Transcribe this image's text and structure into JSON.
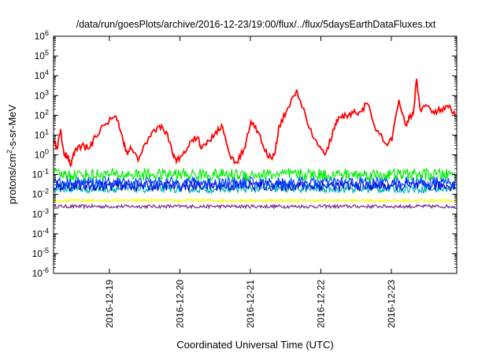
{
  "chart_data": {
    "type": "line",
    "title": "/data/run/goesPlots/archive/2016-12-23/19:00/flux/../flux/5daysEarthDataFluxes.txt",
    "xlabel": "Coordinated Universal Time (UTC)",
    "ylabel": {
      "base": "protons/cm",
      "sup": "2",
      "rest": "-s-sr-MeV"
    },
    "yscale": "log",
    "ylim": [
      1e-06,
      1000000.0
    ],
    "xlim_days": [
      "2016-12-18 T05:00",
      "2016-12-23 T19:00"
    ],
    "grid": false,
    "legend": "none",
    "y_ticks": [
      {
        "value": 1e-06,
        "base": "10",
        "exp": "-6"
      },
      {
        "value": 1e-05,
        "base": "10",
        "exp": "-5"
      },
      {
        "value": 0.0001,
        "base": "10",
        "exp": "-4"
      },
      {
        "value": 0.001,
        "base": "10",
        "exp": "-3"
      },
      {
        "value": 0.01,
        "base": "10",
        "exp": "-2"
      },
      {
        "value": 0.1,
        "base": "10",
        "exp": "-1"
      },
      {
        "value": 1,
        "base": "10",
        "exp": "0"
      },
      {
        "value": 10,
        "base": "10",
        "exp": "1"
      },
      {
        "value": 100,
        "base": "10",
        "exp": "2"
      },
      {
        "value": 1000,
        "base": "10",
        "exp": "3"
      },
      {
        "value": 10000,
        "base": "10",
        "exp": "4"
      },
      {
        "value": 100000,
        "base": "10",
        "exp": "5"
      },
      {
        "value": 1000000,
        "base": "10",
        "exp": "6"
      }
    ],
    "x_ticks": [
      {
        "label": "2016-12-19",
        "day": 0.792
      },
      {
        "label": "2016-12-20",
        "day": 1.792
      },
      {
        "label": "2016-12-21",
        "day": 2.792
      },
      {
        "label": "2016-12-22",
        "day": 3.792
      },
      {
        "label": "2016-12-23",
        "day": 4.792
      }
    ],
    "series": [
      {
        "color": "#ff0000",
        "x_days": [
          0.0,
          0.05,
          0.1,
          0.15,
          0.2,
          0.25,
          0.3,
          0.4,
          0.5,
          0.6,
          0.7,
          0.85,
          0.92,
          1.0,
          1.05,
          1.1,
          1.2,
          1.35,
          1.5,
          1.6,
          1.7,
          1.75,
          1.85,
          1.95,
          2.05,
          2.1,
          2.2,
          2.3,
          2.4,
          2.5,
          2.6,
          2.7,
          2.8,
          2.9,
          3.0,
          3.1,
          3.15,
          3.2,
          3.3,
          3.45,
          3.6,
          3.75,
          3.85,
          3.95,
          4.0,
          4.05,
          4.15,
          4.25,
          4.35,
          4.45,
          4.55,
          4.7,
          4.8,
          4.9,
          5.0,
          5.05,
          5.1,
          5.15,
          5.2,
          5.3,
          5.4,
          5.5,
          5.6,
          5.7
        ],
        "values": [
          6,
          2,
          20,
          1,
          0.8,
          0.3,
          1.5,
          3,
          2,
          8,
          30,
          80,
          50,
          3,
          1,
          2,
          0.5,
          8,
          30,
          15,
          0.8,
          0.5,
          1.5,
          5,
          8,
          2,
          5,
          15,
          25,
          1,
          0.4,
          2,
          50,
          15,
          1.5,
          0.6,
          2,
          30,
          150,
          2000,
          40,
          3,
          1,
          8,
          40,
          80,
          100,
          130,
          150,
          400,
          30,
          4,
          5,
          600,
          30,
          80,
          100,
          7000,
          200,
          300,
          120,
          200,
          250,
          100
        ]
      },
      {
        "color": "#00ee00",
        "band": [
          0.05,
          0.2
        ],
        "x_days": [
          0,
          5.7
        ]
      },
      {
        "color": "#0044ff",
        "band": [
          0.02,
          0.08
        ],
        "x_days": [
          0,
          5.7
        ]
      },
      {
        "color": "#0000cc",
        "band": [
          0.015,
          0.05
        ],
        "x_days": [
          0,
          5.7
        ]
      },
      {
        "color": "#00b3b3",
        "band": [
          0.012,
          0.03
        ],
        "x_days": [
          0,
          5.7
        ]
      },
      {
        "color": "#ffff00",
        "band": [
          0.004,
          0.006
        ],
        "x_days": [
          0,
          5.7
        ]
      },
      {
        "color": "#7b2d8b",
        "band": [
          0.002,
          0.003
        ],
        "x_days": [
          0,
          5.7
        ]
      }
    ]
  }
}
